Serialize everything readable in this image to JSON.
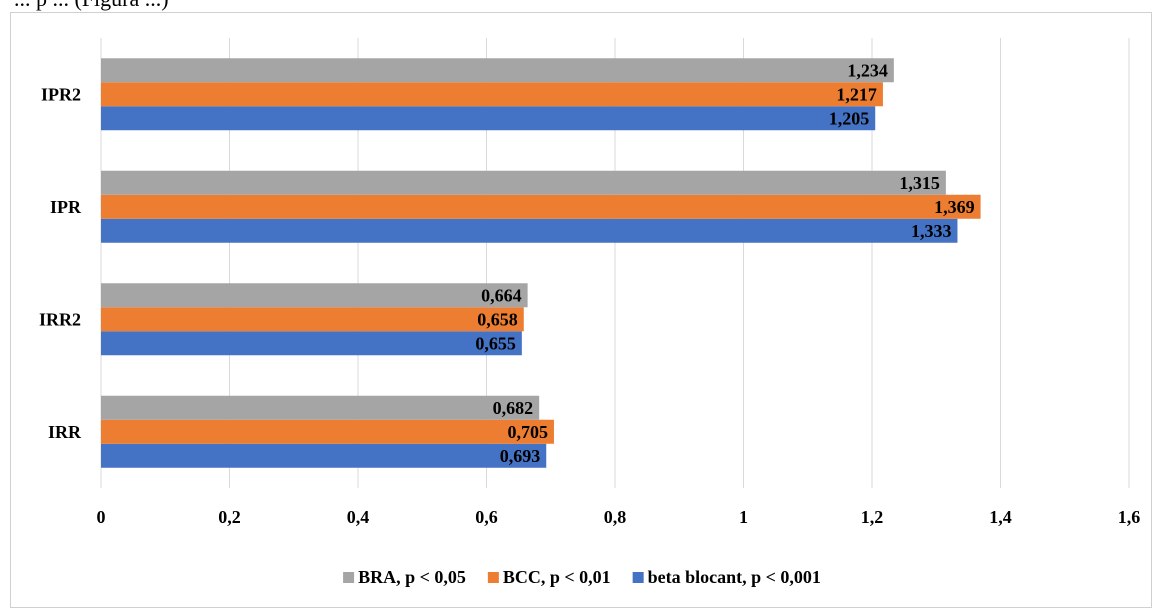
{
  "caption": "... p ... (Figura ...)",
  "chart_data": {
    "type": "bar",
    "orientation": "horizontal",
    "categories": [
      "IRR",
      "IRR2",
      "IPR",
      "IPR2"
    ],
    "series": [
      {
        "name": "beta blocant, p < 0,001",
        "color": "#4472C4",
        "values": [
          0.693,
          0.655,
          1.333,
          1.205
        ],
        "labels": [
          "0,693",
          "0,655",
          "1,333",
          "1,205"
        ]
      },
      {
        "name": "BCC, p < 0,01",
        "color": "#ED7D31",
        "values": [
          0.705,
          0.658,
          1.369,
          1.217
        ],
        "labels": [
          "0,705",
          "0,658",
          "1,369",
          "1,217"
        ]
      },
      {
        "name": "BRA, p < 0,05",
        "color": "#A5A5A5",
        "values": [
          0.682,
          0.664,
          1.315,
          1.234
        ],
        "labels": [
          "0,682",
          "0,664",
          "1,315",
          "1,234"
        ]
      }
    ],
    "xlim": [
      0,
      1.6
    ],
    "xticks": [
      0,
      0.2,
      0.4,
      0.6,
      0.8,
      1,
      1.2,
      1.4,
      1.6
    ],
    "xtick_labels": [
      "0",
      "0,2",
      "0,4",
      "0,6",
      "0,8",
      "1",
      "1,2",
      "1,4",
      "1,6"
    ],
    "legend_order": [
      "BRA, p < 0,05",
      "BCC, p < 0,01",
      "beta blocant, p < 0,001"
    ],
    "legend_position": "bottom",
    "grid": true
  }
}
